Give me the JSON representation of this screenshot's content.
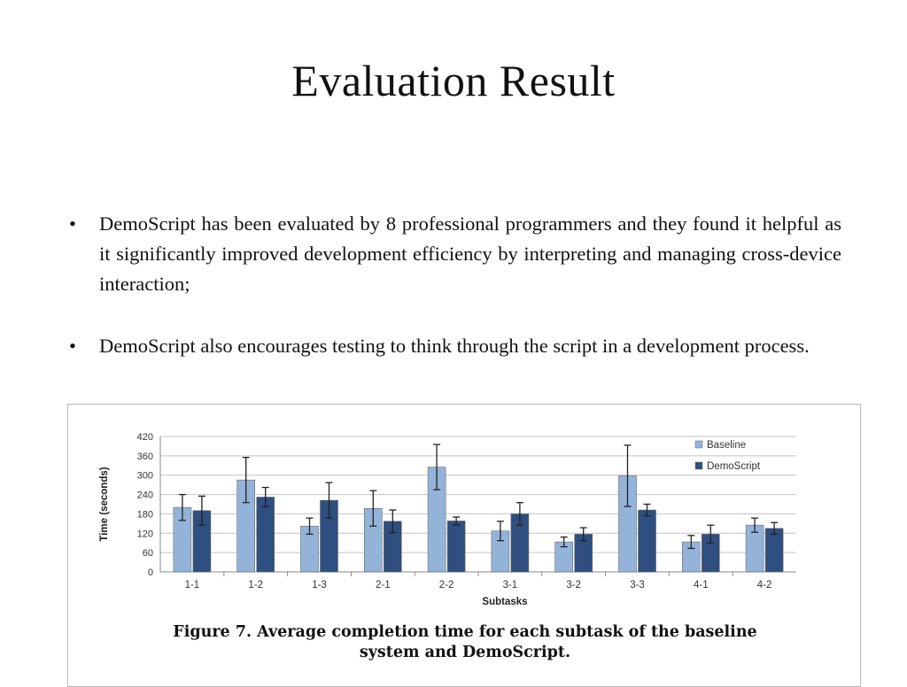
{
  "slide": {
    "title": "Evaluation Result",
    "bullets": [
      "DemoScript has been evaluated by 8 professional programmers and they found it helpful as it significantly improved development efficiency by interpreting and managing cross-device interaction;",
      "DemoScript also encourages testing to think through the script in a development process."
    ]
  },
  "figure": {
    "caption_line1": "Figure 7. Average completion time for each subtask of the baseline",
    "caption_line2": "system and DemoScript."
  },
  "chart_data": {
    "type": "bar",
    "xlabel": "Subtasks",
    "ylabel": "Time (seconds)",
    "ylim": [
      0,
      420
    ],
    "yticks": [
      0,
      60,
      120,
      180,
      240,
      300,
      360,
      420
    ],
    "grid": true,
    "legend_position": "top-right",
    "categories": [
      "1-1",
      "1-2",
      "1-3",
      "2-1",
      "2-2",
      "3-1",
      "3-2",
      "3-3",
      "4-1",
      "4-2"
    ],
    "series": [
      {
        "name": "Baseline",
        "color": "#93b3d9",
        "values": [
          200,
          285,
          142,
          197,
          325,
          127,
          93,
          298,
          93,
          145
        ],
        "error": [
          40,
          70,
          25,
          55,
          70,
          30,
          15,
          95,
          20,
          22
        ]
      },
      {
        "name": "DemoScript",
        "color": "#2e4f7f",
        "values": [
          190,
          232,
          222,
          157,
          158,
          180,
          117,
          192,
          117,
          135
        ],
        "error": [
          45,
          30,
          55,
          35,
          12,
          35,
          20,
          18,
          28,
          18
        ]
      }
    ]
  }
}
